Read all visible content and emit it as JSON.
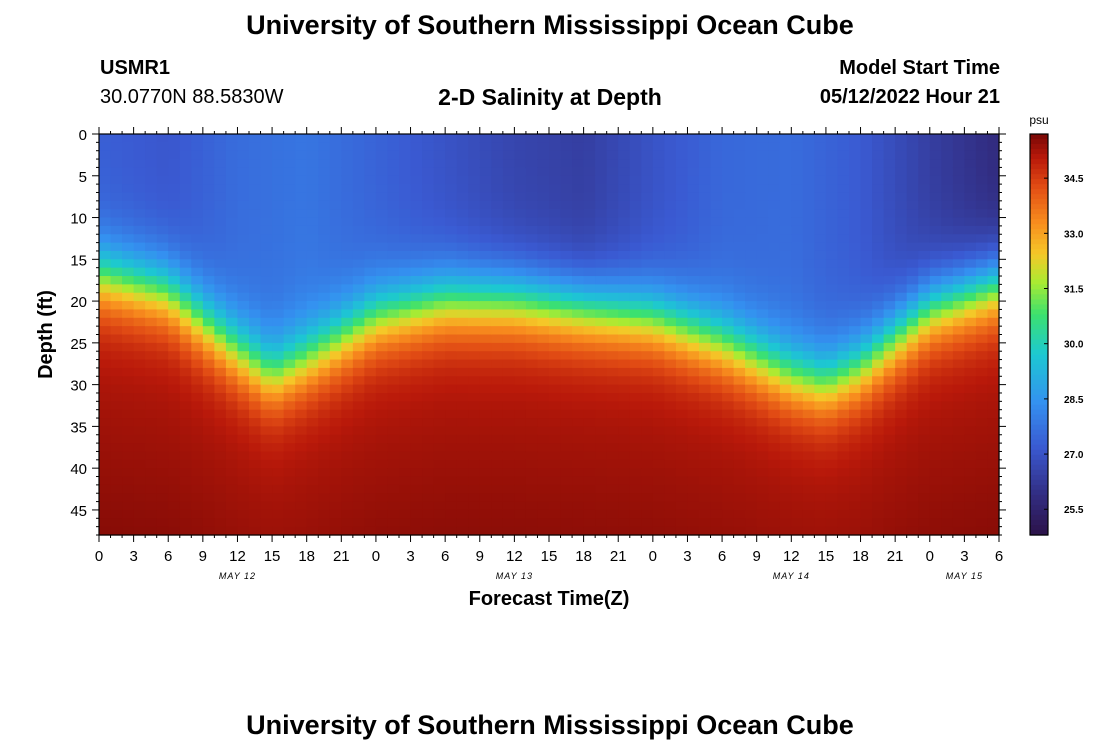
{
  "header": {
    "title": "University of Southern Mississippi Ocean Cube",
    "station_id": "USMR1",
    "coordinates": "30.0770N  88.5830W",
    "model_start_label": "Model Start Time",
    "model_start_value": "05/12/2022 Hour 21"
  },
  "footer": {
    "title": "University of Southern Mississippi Ocean Cube"
  },
  "chart_data": {
    "type": "heatmap",
    "title": "2-D Salinity at Depth",
    "xlabel": "Forecast Time(Z)",
    "ylabel": "Depth (ft)",
    "x_ticks": [
      "0",
      "3",
      "6",
      "9",
      "12",
      "15",
      "18",
      "21",
      "0",
      "3",
      "6",
      "9",
      "12",
      "15",
      "18",
      "21",
      "0",
      "3",
      "6",
      "9",
      "12",
      "15",
      "18",
      "21",
      "0",
      "3",
      "6"
    ],
    "date_labels": [
      {
        "label": "MAY 12",
        "hour_index": 4
      },
      {
        "label": "MAY 13",
        "hour_index": 12
      },
      {
        "label": "MAY 14",
        "hour_index": 20
      },
      {
        "label": "MAY 15",
        "hour_index": 25
      }
    ],
    "xlim_hours": [
      0,
      78
    ],
    "ylim_ft": [
      0,
      48
    ],
    "y_ticks": [
      0,
      5,
      10,
      15,
      20,
      25,
      30,
      35,
      40,
      45
    ],
    "colorbar": {
      "unit": "psu",
      "range": [
        24.8,
        35.7
      ],
      "ticks": [
        "34.5",
        "33.0",
        "31.5",
        "30.0",
        "28.5",
        "27.0",
        "25.5"
      ],
      "tick_values": [
        34.5,
        33.0,
        31.5,
        30.0,
        28.5,
        27.0,
        25.5
      ]
    },
    "halocline_depth_ft": {
      "hours": [
        0,
        6,
        12,
        15,
        18,
        24,
        30,
        36,
        42,
        48,
        54,
        60,
        63,
        66,
        72,
        78
      ],
      "depth": [
        17,
        19,
        26,
        29,
        27,
        22,
        20,
        20,
        21,
        22,
        25,
        29,
        30,
        28,
        21,
        18
      ]
    },
    "surface_salinity_psu": {
      "hours": [
        0,
        6,
        12,
        18,
        24,
        30,
        36,
        42,
        48,
        54,
        60,
        66,
        72,
        78
      ],
      "value": [
        27.3,
        27.1,
        27.6,
        27.8,
        27.4,
        27.0,
        26.6,
        26.4,
        27.0,
        27.5,
        27.6,
        27.2,
        26.4,
        25.8
      ]
    },
    "bottom_salinity_psu": 35.1
  }
}
